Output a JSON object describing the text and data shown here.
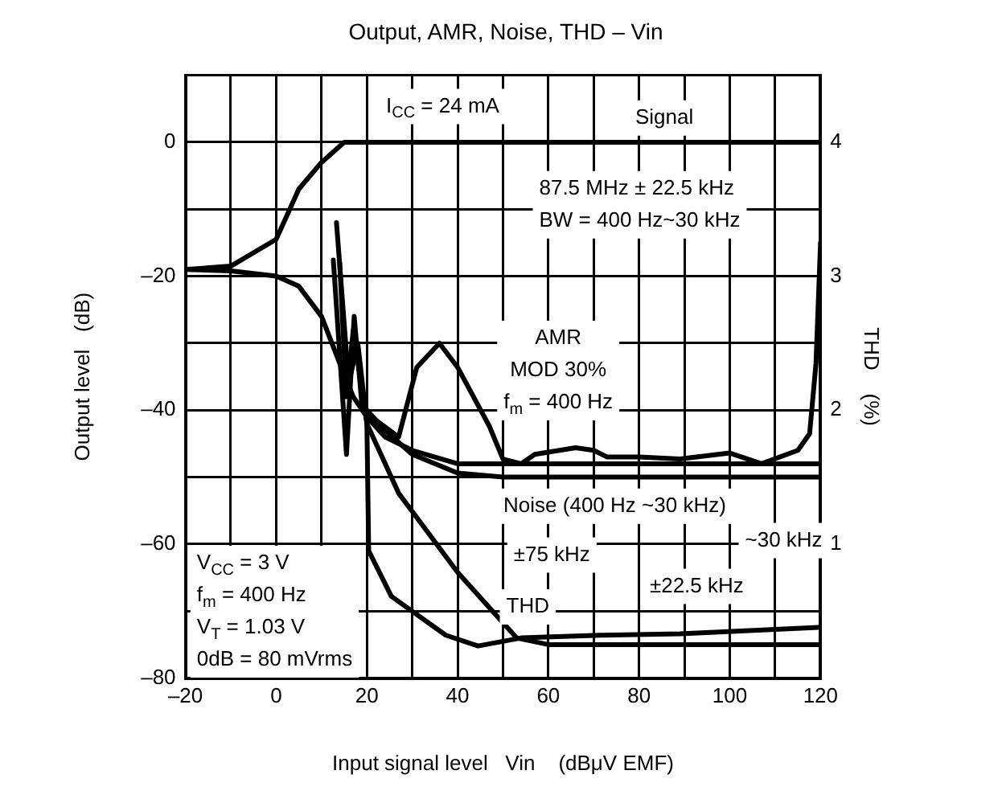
{
  "chart_data": {
    "type": "line",
    "title": "Output, AMR, Noise, THD – Vin",
    "xlabel": "Input signal level   Vin    (dBμV EMF)",
    "ylabel": "Output level   (dB)",
    "y2label": "THD    (%)",
    "xlim": [
      -20,
      120
    ],
    "xticks": [
      {
        "value": -20,
        "label": "–20"
      },
      {
        "value": -10,
        "label": null
      },
      0,
      {
        "value": 10,
        "label": null
      },
      20,
      {
        "value": 30,
        "label": null
      },
      40,
      {
        "value": 50,
        "label": null
      },
      60,
      {
        "value": 70,
        "label": null
      },
      80,
      {
        "value": 90,
        "label": null
      },
      100,
      {
        "value": 110,
        "label": null
      },
      120
    ],
    "ylim": [
      -80,
      10
    ],
    "yticks": [
      {
        "value": -80,
        "label": "–80"
      },
      {
        "value": -70,
        "label": null
      },
      {
        "value": -60,
        "label": "–60"
      },
      {
        "value": -50,
        "label": null
      },
      {
        "value": -40,
        "label": "–40"
      },
      {
        "value": -30,
        "label": null
      },
      {
        "value": -20,
        "label": "–20"
      },
      {
        "value": -10,
        "label": null
      },
      0,
      {
        "value": 10,
        "label": null
      }
    ],
    "y2lim": [
      0,
      4.5
    ],
    "y2ticks": [
      1,
      2,
      3,
      4
    ],
    "grid": true,
    "legend": false,
    "marker": "none",
    "line_style": "solid",
    "series": [
      {
        "color": "#000000",
        "x": [
          -20,
          -10,
          0,
          5,
          10,
          15,
          120
        ],
        "values": [
          -19,
          -18.5,
          -14.5,
          -7,
          -3,
          0,
          0
        ]
      },
      {
        "color": "#000000",
        "x": [
          -20,
          -10,
          0,
          5,
          10,
          14,
          17,
          20,
          24,
          30,
          40,
          50,
          120
        ],
        "values": [
          -19,
          -19.2,
          -20,
          -21.5,
          -26,
          -33,
          -38,
          -41,
          -44,
          -46,
          -48,
          -48,
          -48
        ]
      },
      {
        "color": "#000000",
        "x": [
          20,
          24,
          30,
          40,
          50,
          120
        ],
        "values": [
          -40,
          -43,
          -46.6,
          -49.4,
          -50,
          -50
        ]
      },
      {
        "color": "#000000",
        "x": [
          12.6,
          15.5,
          17.2,
          19,
          27,
          31,
          36,
          40,
          47,
          50,
          54,
          57,
          66,
          70,
          73,
          80,
          89,
          100,
          107,
          115,
          117.6,
          119,
          120
        ],
        "values": [
          -17.6,
          -46.6,
          -26,
          -40,
          -44,
          -33.6,
          -30,
          -33.6,
          -42.4,
          -47.3,
          -48,
          -46.6,
          -45.6,
          -46,
          -47,
          -47,
          -47.3,
          -46.4,
          -48,
          -46,
          -43.5,
          -33,
          -15
        ]
      },
      {
        "color": "#000000",
        "axis": "y2",
        "x": [
          13.3,
          16,
          18,
          20,
          27,
          40,
          53,
          60,
          120
        ],
        "values": [
          3.4,
          2.2,
          2.5,
          1.9,
          1.38,
          0.79,
          0.3,
          0.25,
          0.25
        ]
      },
      {
        "color": "#000000",
        "axis": "y2",
        "x": [
          14,
          15.5,
          17,
          20,
          20.4,
          25.4,
          37.4,
          44.5,
          54,
          71.5,
          89,
          120
        ],
        "values": [
          3.1,
          2.1,
          2.6,
          1.9,
          0.95,
          0.61,
          0.32,
          0.24,
          0.3,
          0.32,
          0.33,
          0.38
        ]
      }
    ],
    "annotations": [
      "I$_{CC}$ = 24 mA",
      "87.5 MHz ± 22.5 kHz\nBW = 400 Hz~30 kHz",
      "V$_{CC}$ = 3 V\nf$_{m}$ = 400 Hz\nV$_{T}$ = 1.03 V\n0dB = 80 mVrms",
      "Signal",
      "AMR\nMOD 30%\nf$_{m}$ = 400 Hz",
      "Noise (400 Hz ~30 kHz)",
      "~30 kHz",
      "±75 kHz",
      "THD",
      "±22.5 kHz"
    ]
  }
}
